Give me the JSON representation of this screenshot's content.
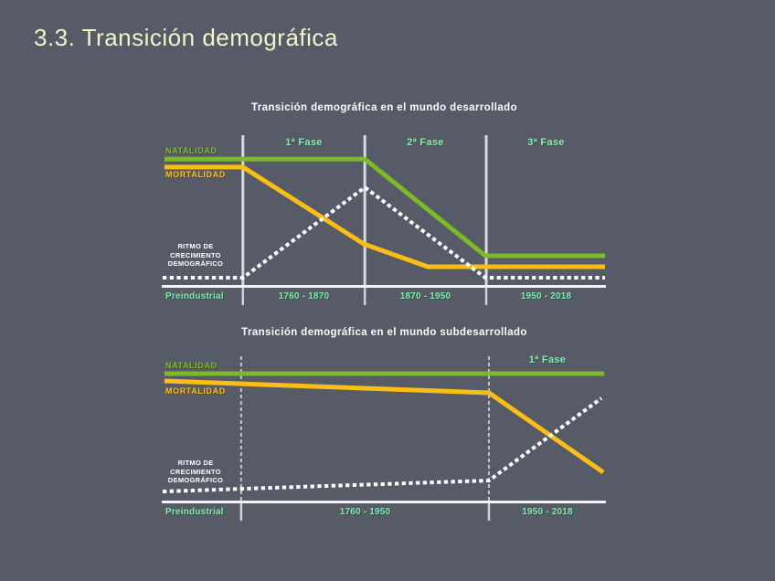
{
  "slide": {
    "title": "3.3. Transición demográfica",
    "background_color": "#575B68",
    "title_color": "#F2F2CC"
  },
  "colors": {
    "natalidad_line": "#7CBA28",
    "mortalidad_line": "#FABE14",
    "growth_line": "#FFFFFF",
    "phase_label": "#8CEBAF",
    "x_axis_label": "#82E8AA",
    "chart_title": "#FCFCFC",
    "axis": "#F2F4F6",
    "divider_chart1": "#D8DBDF",
    "divider_chart2": "#C4C8CE"
  },
  "chart_data": [
    {
      "type": "line",
      "title": "Transición demográfica en el mundo desarrollado",
      "y_axis": "none (qualitative rate levels, high to low)",
      "x_labels": [
        "Preindustrial",
        "1760 - 1870",
        "1870 - 1950",
        "1950 - 2018"
      ],
      "phase_labels": [
        "1ª Fase",
        "2ª Fase",
        "3ª Fase"
      ],
      "birth_label": "NATALIDAD",
      "death_label": "MORTALIDAD",
      "growth_label_lines": [
        "RITMO DE",
        "CRECIMIENTO",
        "DEMOGRÁFICO"
      ],
      "dividers_pct": [
        18.1,
        45.6,
        73.0
      ],
      "series": [
        {
          "name": "NATALIDAD",
          "style": "solid",
          "color": "#7CBA28",
          "points_pct": [
            [
              0.4,
              15.9
            ],
            [
              45.6,
              15.9
            ],
            [
              72.8,
              80.5
            ],
            [
              99.8,
              80.5
            ]
          ],
          "description": "birth rate: high and flat through 1ª Fase, falls during 2ª Fase, low and flat in 3ª Fase"
        },
        {
          "name": "MORTALIDAD",
          "style": "solid",
          "color": "#FABE14",
          "points_pct": [
            [
              0.4,
              21.3
            ],
            [
              18.1,
              21.3
            ],
            [
              45.4,
              72.6
            ],
            [
              59.8,
              87.8
            ],
            [
              99.8,
              87.8
            ]
          ],
          "description": "death rate: high preindustrial, falls steeply 1760-1870, levels off low from ~1900"
        },
        {
          "name": "RITMO DE CRECIMIENTO DEMOGRÁFICO",
          "style": "dotted",
          "color": "#FFFFFF",
          "points_pct": [
            [
              0,
              95.1
            ],
            [
              18.1,
              95.1
            ],
            [
              45.6,
              34.8
            ],
            [
              72.8,
              95.1
            ],
            [
              99.8,
              95.1
            ]
          ],
          "description": "growth rate: near zero preindustrial, peaks at 1870, returns to near zero by 1950"
        }
      ]
    },
    {
      "type": "line",
      "title": "Transición demográfica en el mundo subdesarrollado",
      "y_axis": "none (qualitative rate levels, high to low)",
      "x_labels": [
        "Preindustrial",
        "1760 - 1950",
        "1950 - 2018"
      ],
      "phase_labels": [
        "1ª Fase"
      ],
      "birth_label": "NATALIDAD",
      "death_label": "MORTALIDAD",
      "growth_label_lines": [
        "RITMO DE",
        "CRECIMIENTO",
        "DEMOGRÁFICO"
      ],
      "dividers_pct": [
        17.7,
        73.6
      ],
      "series": [
        {
          "name": "NATALIDAD",
          "style": "solid",
          "color": "#7CBA28",
          "points_pct": [
            [
              0.4,
              12.0
            ],
            [
              99.6,
              12.0
            ]
          ],
          "description": "birth rate: stays high and flat across all periods"
        },
        {
          "name": "MORTALIDAD",
          "style": "solid",
          "color": "#FABE14",
          "points_pct": [
            [
              0.4,
              17.1
            ],
            [
              73.6,
              25.3
            ],
            [
              99.4,
              80.4
            ]
          ],
          "description": "death rate: high with slight decline until 1950, then falls steeply"
        },
        {
          "name": "RITMO DE CRECIMIENTO DEMOGRÁFICO",
          "style": "dotted",
          "color": "#FFFFFF",
          "points_pct": [
            [
              0,
              93.7
            ],
            [
              73.6,
              86.1
            ],
            [
              99.0,
              29.1
            ]
          ],
          "description": "growth rate: near zero until 1950, then rises steeply"
        }
      ]
    }
  ]
}
